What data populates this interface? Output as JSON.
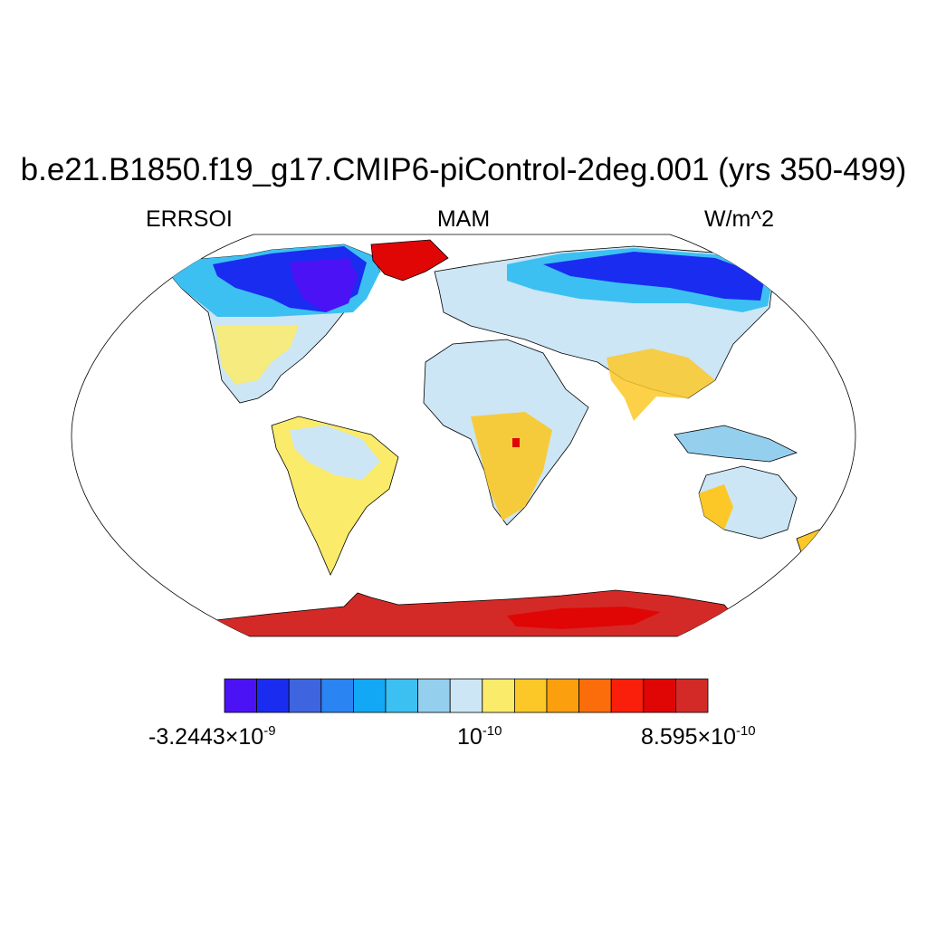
{
  "title": "b.e21.B1850.f19_g17.CMIP6-piControl-2deg.001 (yrs 350-499)",
  "variable": "ERRSOI",
  "season": "MAM",
  "units": "W/m^2",
  "colorbar": {
    "colors": [
      "#4b12f5",
      "#1a2cf0",
      "#3e64e0",
      "#2a84f2",
      "#12a8f5",
      "#3cc0f2",
      "#95cfee",
      "#cce6f5",
      "#fbeb6a",
      "#fbc827",
      "#fb9f0e",
      "#fb6d0a",
      "#fa1f0a",
      "#e00606",
      "#d42a27"
    ],
    "label_left_mantissa": "-3.2443×10",
    "label_left_exp": "-9",
    "label_mid_mantissa": "10",
    "label_mid_exp": "-10",
    "label_right_mantissa": "8.595×10",
    "label_right_exp": "-10"
  },
  "map_regions": [
    {
      "name": "Greenland",
      "color": "#e00606"
    },
    {
      "name": "North America high latitudes",
      "color": "#4b12f5"
    },
    {
      "name": "Eurasia high latitudes",
      "color": "#3e64e0"
    },
    {
      "name": "Africa",
      "color": "#cce6f5"
    },
    {
      "name": "Antarctica",
      "color": "#d42a27"
    }
  ]
}
